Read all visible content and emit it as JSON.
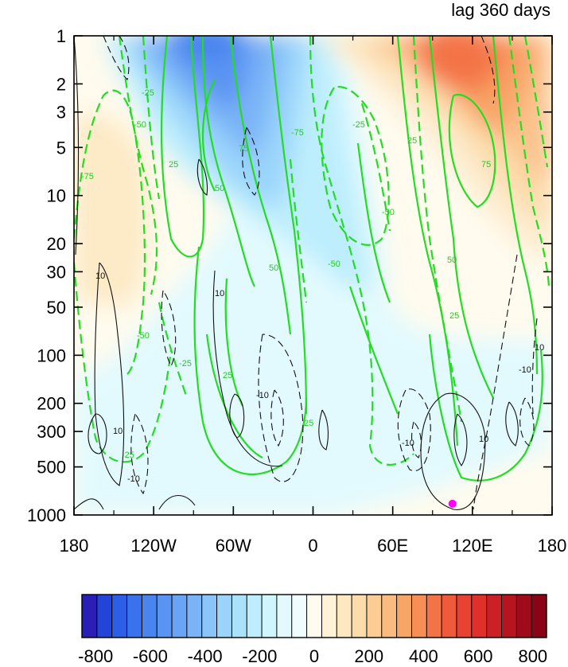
{
  "chart_data": {
    "type": "heatmap",
    "title": "lag 360 days",
    "xlabel": "",
    "ylabel": "",
    "x_ticks": [
      "180",
      "120W",
      "60W",
      "0",
      "60E",
      "120E",
      "180"
    ],
    "y_ticks": [
      "1",
      "2",
      "3",
      "5",
      "10",
      "20",
      "30",
      "50",
      "100",
      "200",
      "300",
      "500",
      "1000"
    ],
    "y_scale": "log",
    "y_reversed": true,
    "xlim": [
      -180,
      180
    ],
    "ylim": [
      1000,
      1
    ],
    "colorbar": {
      "tick_labels": [
        "-800",
        "-600",
        "-400",
        "-200",
        "0",
        "200",
        "400",
        "600",
        "800"
      ],
      "min": -850,
      "max": 850,
      "step": 50,
      "colors": [
        "#2a1fb5",
        "#2244d8",
        "#2d5ee8",
        "#3a72ec",
        "#4a84ef",
        "#5a94f2",
        "#6aa4f5",
        "#7ab4f7",
        "#8ac4f9",
        "#9ad4fb",
        "#aae2fc",
        "#bdeefd",
        "#d0f5fd",
        "#e2fafe",
        "#f0fdfe",
        "#fffbee",
        "#fff2d6",
        "#fde8c0",
        "#fcdcaa",
        "#fbcd94",
        "#fabb7e",
        "#f8a668",
        "#f68e56",
        "#f37346",
        "#ef5a3a",
        "#ea4232",
        "#e0302c",
        "#cc2026",
        "#b81420",
        "#a00b1b",
        "#8a0416"
      ]
    },
    "series": [
      {
        "field": "shaded",
        "features": [
          {
            "kind": "negative-max",
            "lon": -75,
            "pres": 1.5,
            "value": -550
          },
          {
            "kind": "positive-max",
            "lon": 95,
            "pres": 1.5,
            "value": 550
          },
          {
            "kind": "zero-line-region",
            "lon": 20,
            "pres": 900,
            "value": 0
          }
        ]
      },
      {
        "field": "green-contours",
        "levels": [
          -75,
          -50,
          -25,
          25,
          50,
          75
        ],
        "contour_labels": [
          "-25",
          "-50",
          "-75",
          "25",
          "50",
          "75",
          "-50",
          "-25",
          "25",
          "50",
          "-75",
          "-50",
          "-25",
          "25",
          "50",
          "-50",
          "25",
          "75",
          "-25",
          "-25"
        ]
      },
      {
        "field": "black-contours",
        "levels": [
          -10,
          10
        ],
        "contour_labels": [
          "10",
          "-10",
          "10",
          "-10",
          "10",
          "-10",
          "-10",
          "-10",
          "10",
          "-10",
          "10"
        ]
      }
    ],
    "markers": [
      {
        "label": "",
        "lon": 105,
        "pres": 850,
        "color": "#ff00ff"
      }
    ],
    "grid": false
  }
}
